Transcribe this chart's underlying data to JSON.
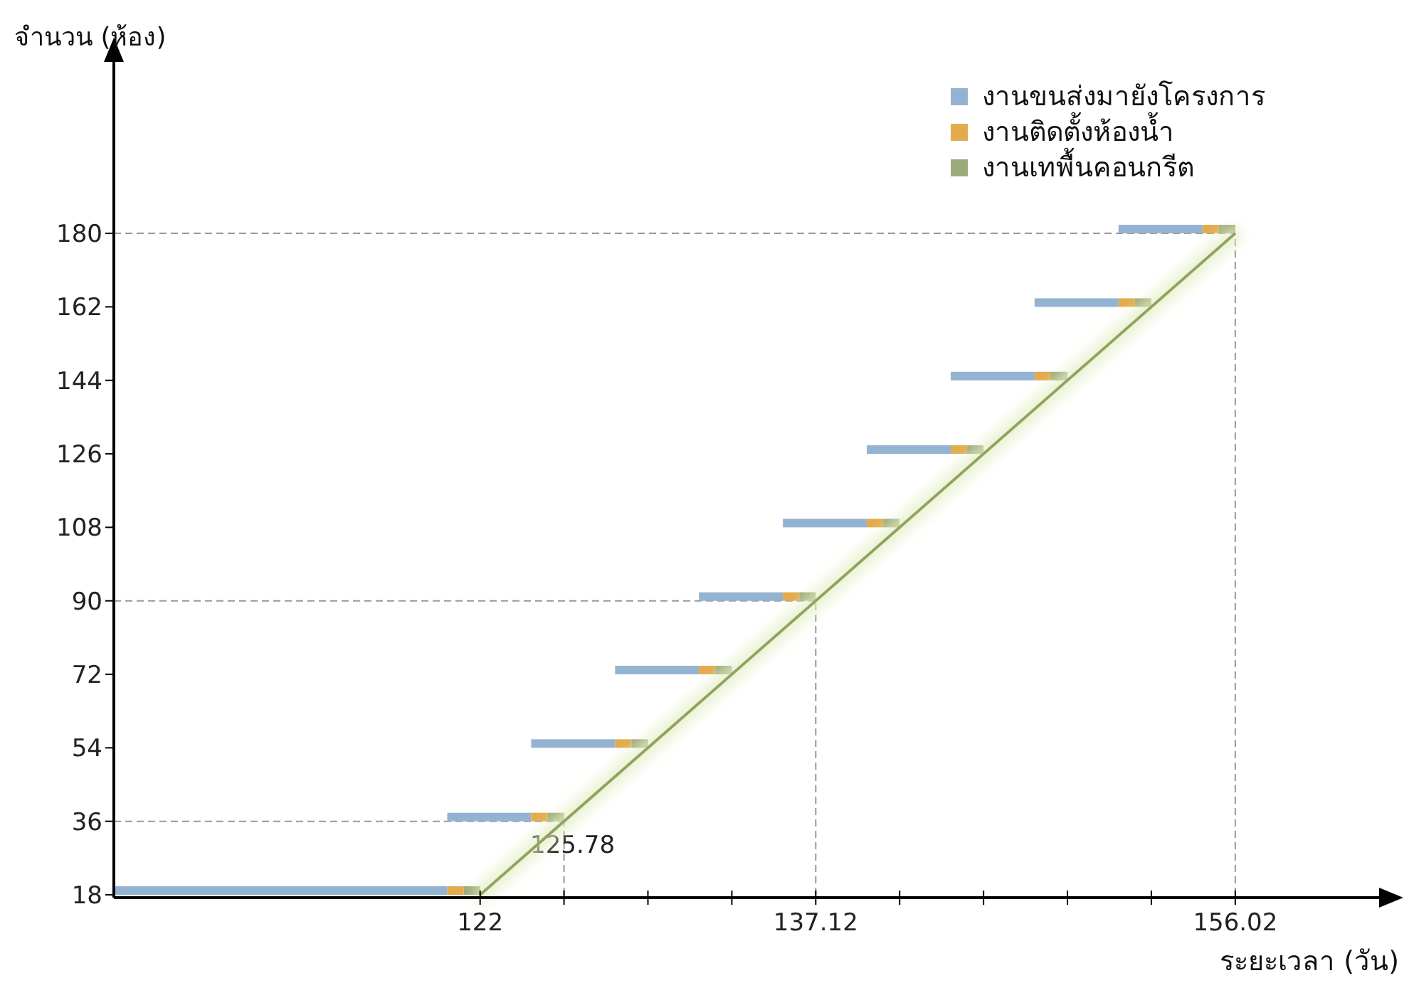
{
  "chart_data": {
    "type": "bar",
    "orientation": "horizontal",
    "xlabel": "ระยะเวลา (วัน)",
    "ylabel": "จำนวน (ห้อง)",
    "x": [
      18,
      36,
      54,
      72,
      90,
      108,
      126,
      144,
      162,
      180
    ],
    "series": [
      {
        "name": "งานขนส่งมายังโครงการ",
        "color": "#93b3d2",
        "base": [
          105.5,
          120.52,
          124.3,
          128.08,
          131.86,
          135.64,
          139.42,
          143.2,
          146.98,
          150.76
        ],
        "values": [
          15.02,
          3.78,
          3.78,
          3.78,
          3.78,
          3.78,
          3.78,
          3.78,
          3.78,
          3.78
        ]
      },
      {
        "name": "งานติดตั้งห้องน้ำ",
        "color": "#e2ac4c",
        "base": [
          120.52,
          124.3,
          128.08,
          131.86,
          135.64,
          139.42,
          143.2,
          146.98,
          150.76,
          154.54
        ],
        "values": [
          0.74,
          0.74,
          0.74,
          0.74,
          0.74,
          0.74,
          0.74,
          0.74,
          0.74,
          0.74
        ]
      },
      {
        "name": "งานเทพื้นคอนกรีต",
        "color": "#9dab7c",
        "base": [
          121.26,
          125.04,
          128.82,
          132.6,
          136.38,
          140.16,
          143.94,
          147.72,
          151.5,
          155.28
        ],
        "values": [
          0.74,
          0.74,
          0.74,
          0.74,
          0.74,
          0.74,
          0.74,
          0.74,
          0.74,
          0.74
        ]
      },
      {
        "type": "line",
        "color": "#8fa45f",
        "x": [
          18,
          180
        ],
        "values": [
          122,
          156.02
        ]
      }
    ],
    "xlim": [
      105.5,
      162.5
    ],
    "xticks": [
      122,
      {
        "value": 125.78,
        "label": null
      },
      {
        "value": 129.56,
        "label": null
      },
      {
        "value": 133.34,
        "label": null
      },
      137.12,
      {
        "value": 140.9,
        "label": null
      },
      {
        "value": 144.68,
        "label": null
      },
      {
        "value": 148.46,
        "label": null
      },
      {
        "value": 152.24,
        "label": null
      },
      156.02
    ],
    "ylim": [
      18,
      222
    ],
    "yticks": [
      18,
      36,
      54,
      72,
      90,
      108,
      126,
      144,
      162,
      180
    ],
    "ref_lines": [
      {
        "axis": "y",
        "value": 36,
        "color": "#999999",
        "line_style": "dashed"
      },
      {
        "axis": "y",
        "value": 90,
        "color": "#999999",
        "line_style": "dashed"
      },
      {
        "axis": "y",
        "value": 180,
        "color": "#999999",
        "line_style": "dashed"
      },
      {
        "axis": "x",
        "value": 125.78,
        "label": "125.78",
        "color": "#999999",
        "line_style": "dashed"
      },
      {
        "axis": "x",
        "value": 137.12,
        "color": "#999999",
        "line_style": "dashed"
      },
      {
        "axis": "x",
        "value": 156.02,
        "color": "#999999",
        "line_style": "dashed"
      }
    ],
    "legend": "top right"
  }
}
